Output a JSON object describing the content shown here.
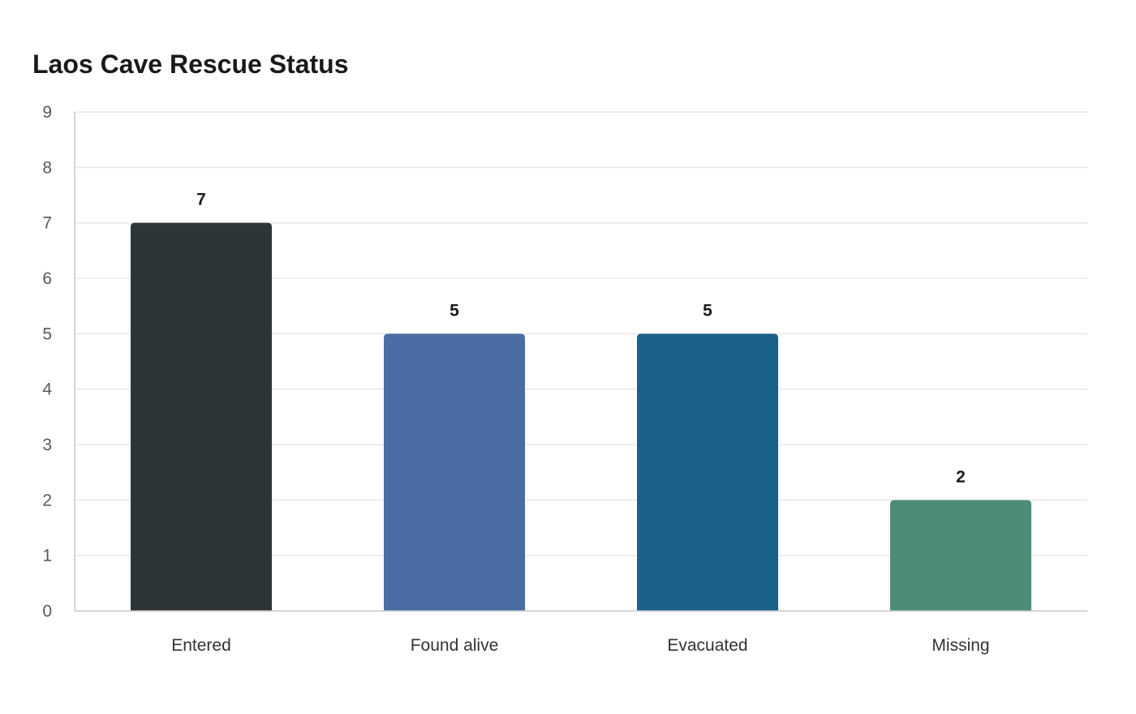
{
  "chart_data": {
    "type": "bar",
    "title": "Laos Cave Rescue Status",
    "xlabel": "",
    "ylabel": "",
    "categories": [
      "Entered",
      "Found alive",
      "Evacuated",
      "Missing"
    ],
    "values": [
      7,
      5,
      5,
      2
    ],
    "colors": [
      "#2d3538",
      "#4a6ea3",
      "#1a6088",
      "#4e8c7a"
    ],
    "ylim": [
      0,
      9
    ],
    "yticks": [
      0,
      1,
      2,
      3,
      4,
      5,
      6,
      7,
      8,
      9
    ],
    "grid": true,
    "legend": "none",
    "data_labels": true
  }
}
